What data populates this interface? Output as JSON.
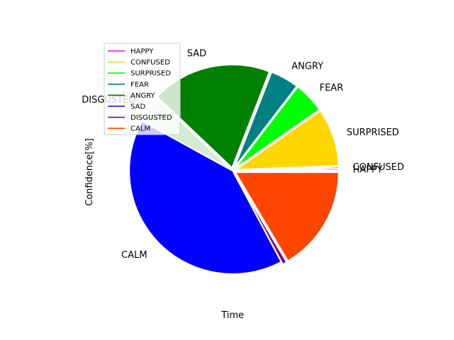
{
  "chart_data": {
    "type": "pie",
    "xlabel": "Time",
    "ylabel": "Confidence[%]",
    "slices": [
      {
        "label": "HAPPY",
        "value": 0.3,
        "color": "#ff00ff",
        "exploded": true
      },
      {
        "label": "CONFUSED",
        "value": 0.3,
        "color": "#800080",
        "exploded": true
      },
      {
        "label": "SURPRISED",
        "value": 9.1,
        "color": "#ffd700",
        "exploded": true
      },
      {
        "label": "FEAR",
        "value": 4.9,
        "color": "#00ff00",
        "exploded": true
      },
      {
        "label": "ANGRY",
        "value": 4.5,
        "color": "#008080",
        "exploded": true
      },
      {
        "label": "SAD",
        "value": 18.8,
        "color": "#008000",
        "exploded": true
      },
      {
        "label": "DISGUSTED",
        "value": 4.1,
        "color": "#d3ead3",
        "exploded": false
      },
      {
        "label": "CALM",
        "value": 40.8,
        "color": "#0000ff",
        "exploded": false
      },
      {
        "label": "",
        "value": 0.7,
        "color": "#800080",
        "exploded": true
      },
      {
        "label": "",
        "value": 16.5,
        "color": "#ff4500",
        "exploded": true
      }
    ],
    "legend": {
      "placement": "upper-left",
      "entries": [
        {
          "label": "HAPPY",
          "color": "#ff00ff"
        },
        {
          "label": "CONFUSED",
          "color": "#ffd700"
        },
        {
          "label": "SURPRISED",
          "color": "#00ff00"
        },
        {
          "label": "FEAR",
          "color": "#008080"
        },
        {
          "label": "ANGRY",
          "color": "#008000"
        },
        {
          "label": "SAD",
          "color": "#0000ff"
        },
        {
          "label": "DISGUSTED",
          "color": "#800080"
        },
        {
          "label": "CALM",
          "color": "#ff4500"
        }
      ]
    }
  }
}
